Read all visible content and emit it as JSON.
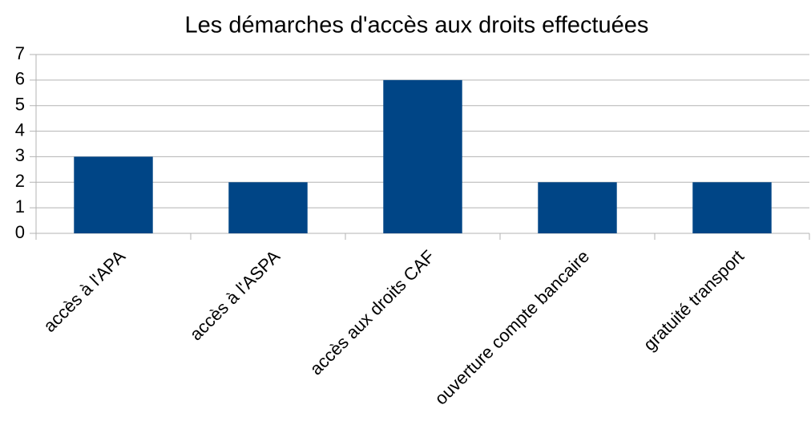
{
  "chart_data": {
    "type": "bar",
    "title": "Les démarches d'accès aux droits effectuées",
    "categories": [
      "accès à l'APA",
      "accès à l'ASPA",
      "accès aux droits CAF",
      "ouverture compte bancaire",
      "gratuité transport"
    ],
    "values": [
      3,
      2,
      6,
      2,
      2
    ],
    "color": "#004586",
    "ylim": [
      0,
      7
    ],
    "yticks": [
      0,
      1,
      2,
      3,
      4,
      5,
      6,
      7
    ],
    "grid": true
  }
}
